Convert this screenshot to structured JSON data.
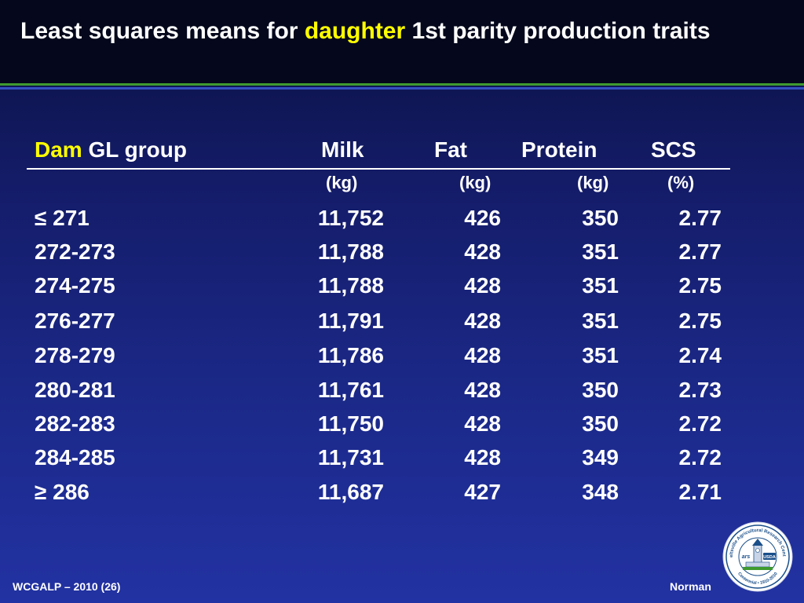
{
  "title": {
    "part1": "Least squares means for ",
    "highlight": "daughter",
    "part2": " 1st parity production traits"
  },
  "table": {
    "headers": {
      "group_hl": "Dam",
      "group_rest": " GL group",
      "milk": "Milk",
      "fat": "Fat",
      "protein": "Protein",
      "scs": "SCS"
    },
    "units": {
      "milk": "(kg)",
      "fat": "(kg)",
      "protein": "(kg)",
      "scs": "(%)"
    },
    "rows": [
      {
        "group": "≤ 271",
        "milk": "11,752",
        "fat": "426",
        "protein": "350",
        "scs": "2.77"
      },
      {
        "group": "272-273",
        "milk": "11,788",
        "fat": "428",
        "protein": "351",
        "scs": "2.77"
      },
      {
        "group": "274-275",
        "milk": "11,788",
        "fat": "428",
        "protein": "351",
        "scs": "2.75"
      },
      {
        "group": "276-277",
        "milk": "11,791",
        "fat": "428",
        "protein": "351",
        "scs": "2.75"
      },
      {
        "group": "278-279",
        "milk": "11,786",
        "fat": "428",
        "protein": "351",
        "scs": "2.74"
      },
      {
        "group": "280-281",
        "milk": "11,761",
        "fat": "428",
        "protein": "350",
        "scs": "2.73"
      },
      {
        "group": "282-283",
        "milk": "11,750",
        "fat": "428",
        "protein": "350",
        "scs": "2.72"
      },
      {
        "group": "284-285",
        "milk": "11,731",
        "fat": "428",
        "protein": "349",
        "scs": "2.72"
      },
      {
        "group": "≥ 286",
        "milk": "11,687",
        "fat": "427",
        "protein": "348",
        "scs": "2.71"
      }
    ]
  },
  "footer": {
    "left": "WCGALP – 2010 (26)",
    "right": "Norman"
  },
  "seal": {
    "icon": "barc-usda-centennial-seal",
    "top_text": "Beltsville Agricultural Research Center",
    "bottom_text": "Centennial • 1910-2010",
    "badge": "USDA",
    "mark": "ars"
  }
}
